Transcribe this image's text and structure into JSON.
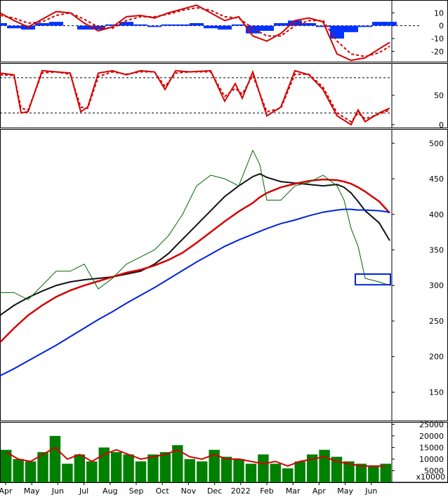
{
  "chart_data": [
    {
      "panel": "macd",
      "type": "line",
      "y_ticks": [
        "10",
        "0",
        "-10",
        "-20"
      ],
      "ylim": [
        -28,
        20
      ],
      "x": [
        0,
        20,
        40,
        60,
        80,
        100,
        120,
        140,
        160,
        180,
        200,
        220,
        240,
        260,
        280,
        300,
        320,
        340,
        360,
        380,
        400,
        420,
        440,
        460,
        480,
        500,
        520,
        540,
        555
      ],
      "series": [
        {
          "color": "#d40000",
          "values": [
            10,
            4,
            -1,
            5,
            11,
            10,
            2,
            -4,
            -1,
            7,
            8,
            6,
            10,
            13,
            16,
            10,
            4,
            7,
            -8,
            -12,
            -6,
            4,
            6,
            3,
            -22,
            -27,
            -25,
            -18,
            -13
          ]
        },
        {
          "color": "#d40000",
          "dashed": true,
          "values": [
            8,
            6,
            2,
            3,
            8,
            10,
            5,
            -1,
            -2,
            4,
            7,
            7,
            9,
            12,
            14,
            12,
            7,
            6,
            -2,
            -8,
            -8,
            0,
            4,
            4,
            -12,
            -22,
            -24,
            -21,
            -16
          ]
        }
      ],
      "histogram": {
        "color": "#0033ff",
        "values": [
          2,
          -2,
          -3,
          2,
          3,
          0,
          -3,
          -3,
          1,
          3,
          1,
          -1,
          1,
          1,
          2,
          -2,
          -3,
          1,
          -6,
          -4,
          2,
          4,
          2,
          -1,
          -10,
          -5,
          -1,
          3,
          3
        ]
      }
    },
    {
      "panel": "stochastic",
      "type": "line",
      "y_ticks": [
        "50",
        "0"
      ],
      "ylim": [
        -5,
        105
      ],
      "reference_lines": [
        80,
        20
      ],
      "x": [
        0,
        20,
        30,
        40,
        60,
        80,
        100,
        115,
        125,
        140,
        160,
        180,
        200,
        220,
        235,
        250,
        270,
        300,
        320,
        335,
        345,
        360,
        380,
        400,
        420,
        440,
        460,
        480,
        500,
        510,
        520,
        540,
        555
      ],
      "series": [
        {
          "color": "#d40000",
          "values": [
            88,
            85,
            20,
            22,
            92,
            90,
            88,
            22,
            30,
            88,
            92,
            85,
            92,
            90,
            60,
            92,
            90,
            92,
            40,
            70,
            45,
            90,
            15,
            30,
            92,
            85,
            60,
            15,
            0,
            25,
            5,
            20,
            28
          ]
        },
        {
          "color": "#d40000",
          "dashed": true,
          "values": [
            85,
            84,
            28,
            25,
            88,
            90,
            86,
            30,
            28,
            82,
            90,
            86,
            90,
            90,
            65,
            88,
            90,
            90,
            48,
            62,
            52,
            84,
            22,
            28,
            86,
            86,
            64,
            20,
            5,
            20,
            10,
            18,
            25
          ]
        }
      ]
    },
    {
      "panel": "price",
      "type": "line",
      "y_ticks": [
        "500",
        "450",
        "400",
        "350",
        "300",
        "250",
        "200",
        "150"
      ],
      "ylim": [
        110,
        520
      ],
      "x": [
        0,
        20,
        40,
        60,
        80,
        100,
        120,
        140,
        160,
        180,
        200,
        220,
        240,
        260,
        280,
        300,
        320,
        340,
        360,
        370,
        380,
        400,
        420,
        440,
        460,
        480,
        490,
        500,
        510,
        520,
        540,
        555
      ],
      "series": [
        {
          "color": "#111111",
          "values": [
            258,
            272,
            283,
            292,
            300,
            305,
            308,
            310,
            312,
            316,
            320,
            330,
            345,
            365,
            385,
            405,
            425,
            440,
            453,
            457,
            452,
            446,
            444,
            442,
            440,
            442,
            438,
            430,
            418,
            405,
            388,
            363
          ],
          "width": 2
        },
        {
          "color": "#d40000",
          "values": [
            220,
            240,
            258,
            272,
            284,
            293,
            300,
            306,
            312,
            318,
            322,
            328,
            336,
            346,
            360,
            375,
            390,
            404,
            416,
            424,
            430,
            438,
            443,
            447,
            449,
            448,
            446,
            443,
            438,
            432,
            418,
            402
          ],
          "width": 2.5
        },
        {
          "color": "#0022dd",
          "values": [
            173,
            183,
            194,
            205,
            216,
            228,
            240,
            252,
            263,
            275,
            286,
            297,
            309,
            321,
            333,
            344,
            355,
            364,
            372,
            376,
            380,
            387,
            392,
            398,
            403,
            406,
            407,
            407,
            406,
            406,
            405,
            403
          ],
          "width": 2
        },
        {
          "color": "#006400",
          "values": [
            290,
            290,
            280,
            300,
            320,
            320,
            330,
            295,
            310,
            330,
            340,
            350,
            370,
            400,
            440,
            455,
            450,
            440,
            490,
            470,
            420,
            420,
            440,
            445,
            455,
            440,
            420,
            380,
            355,
            310,
            305,
            300
          ],
          "width": 1
        }
      ],
      "annotation": {
        "type": "rectangle",
        "color": "#0022dd",
        "x": [
          506,
          556
        ],
        "y": [
          301,
          316
        ]
      }
    },
    {
      "panel": "volume",
      "type": "bar",
      "y_ticks": [
        "25000",
        "20000",
        "15000",
        "10000",
        "5000"
      ],
      "y_unit": "x10000",
      "ylim": [
        0,
        26000
      ],
      "x_tick_labels": [
        "Apr",
        "May",
        "Jun",
        "Jul",
        "Aug",
        "Sep",
        "Oct",
        "Nov",
        "Dec",
        "2022",
        "Feb",
        "Mar",
        "Apr",
        "May",
        "Jun"
      ],
      "bars": {
        "color": "#008000",
        "values": [
          14000,
          10000,
          9000,
          13000,
          20000,
          8000,
          12000,
          9000,
          15000,
          13000,
          12000,
          9000,
          12000,
          13000,
          16000,
          10000,
          9000,
          14000,
          11000,
          10000,
          8000,
          12000,
          8000,
          6000,
          9000,
          12000,
          14000,
          11000,
          9000,
          8000,
          7000,
          8000
        ]
      },
      "moving_average": {
        "color": "#d40000",
        "values": [
          13000,
          10000,
          9000,
          12000,
          15000,
          10000,
          12000,
          9000,
          12000,
          14000,
          12000,
          10000,
          11000,
          12000,
          14000,
          11000,
          10000,
          12000,
          10000,
          10000,
          9000,
          8000,
          9000,
          7000,
          9000,
          10000,
          11000,
          9000,
          8000,
          7000,
          7000,
          7000
        ]
      }
    }
  ]
}
